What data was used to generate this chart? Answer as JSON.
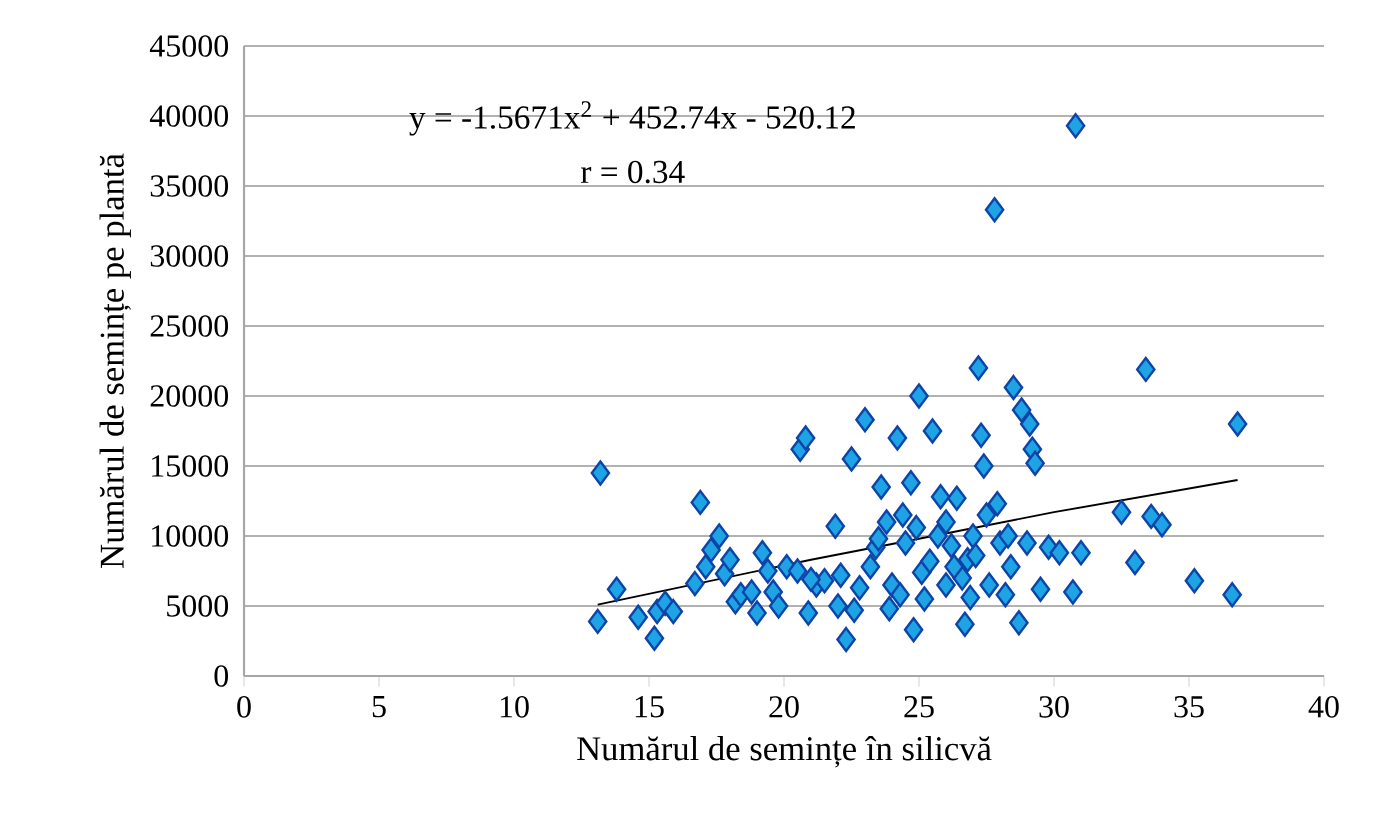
{
  "chart_data": {
    "type": "scatter",
    "xlabel": "Numărul de semințe în silicvă",
    "ylabel": "Numărul de semințe pe plantă",
    "xlim": [
      0,
      40
    ],
    "xticks": [
      0,
      5,
      10,
      15,
      20,
      25,
      30,
      35,
      40
    ],
    "ylim": [
      0,
      45000
    ],
    "yticks": [
      0,
      5000,
      10000,
      15000,
      20000,
      25000,
      30000,
      35000,
      40000,
      45000
    ],
    "grid": "y",
    "marker": "diamond",
    "annotations": [
      "y = -1.5671x$^{2}$ + 452.74x - 520.12",
      "r = 0.34"
    ],
    "series": [
      {
        "color": "#1ea3e4",
        "x": [
          13.2,
          13.1,
          13.8,
          14.6,
          15.2,
          15.3,
          15.6,
          15.9,
          16.7,
          16.9,
          17.1,
          17.3,
          17.6,
          17.8,
          18.0,
          18.2,
          18.4,
          18.8,
          19.0,
          19.2,
          19.4,
          19.6,
          19.8,
          20.1,
          20.5,
          20.6,
          20.8,
          20.9,
          21.2,
          21.5,
          21.9,
          22.1,
          22.3,
          22.5,
          22.6,
          22.8,
          23.0,
          23.2,
          23.4,
          23.6,
          23.8,
          23.9,
          24.0,
          24.2,
          24.3,
          24.4,
          24.5,
          24.7,
          24.8,
          25.0,
          25.1,
          25.2,
          25.4,
          25.5,
          25.7,
          25.8,
          26.0,
          26.2,
          26.4,
          26.6,
          26.7,
          26.8,
          27.0,
          27.2,
          27.3,
          27.4,
          27.5,
          27.6,
          27.8,
          27.9,
          28.0,
          28.2,
          28.4,
          28.5,
          28.7,
          28.8,
          29.0,
          29.1,
          29.2,
          29.3,
          29.5,
          29.8,
          30.2,
          30.8,
          30.7,
          31.0,
          32.5,
          33.0,
          33.4,
          33.6,
          34.0,
          35.2,
          36.6,
          36.8,
          26.0,
          26.3,
          27.1,
          28.3,
          22.0,
          21.0,
          23.5,
          24.9,
          26.9
        ],
        "values": [
          14500,
          3900,
          6200,
          4200,
          2700,
          4600,
          5200,
          4600,
          6600,
          12400,
          7800,
          9000,
          10000,
          7300,
          8300,
          5300,
          5800,
          6000,
          4500,
          8800,
          7500,
          6000,
          5000,
          7800,
          7500,
          16200,
          17000,
          4500,
          6500,
          6800,
          10700,
          7200,
          2600,
          15500,
          4700,
          6300,
          18300,
          7800,
          9200,
          13500,
          11000,
          4800,
          6500,
          17000,
          5800,
          11500,
          9500,
          13800,
          3300,
          20000,
          7400,
          5500,
          8200,
          17500,
          10000,
          12800,
          6500,
          9300,
          12700,
          7000,
          3700,
          8300,
          10000,
          22000,
          17200,
          15000,
          11500,
          6500,
          33300,
          12300,
          9500,
          5800,
          7800,
          20600,
          3800,
          19000,
          9500,
          18000,
          16200,
          15200,
          6200,
          9200,
          8800,
          39300,
          6000,
          8800,
          11700,
          8100,
          21900,
          11400,
          10800,
          6800,
          5800,
          18000,
          11000,
          7800,
          8600,
          10000,
          5000,
          6900,
          9800,
          10600,
          5600
        ]
      },
      {
        "type": "line",
        "color": "#000000",
        "marker": "none",
        "x": [
          13.1,
          21,
          25,
          30,
          36.8
        ],
        "values": [
          5100,
          8300,
          9800,
          11700,
          14000
        ]
      }
    ]
  }
}
